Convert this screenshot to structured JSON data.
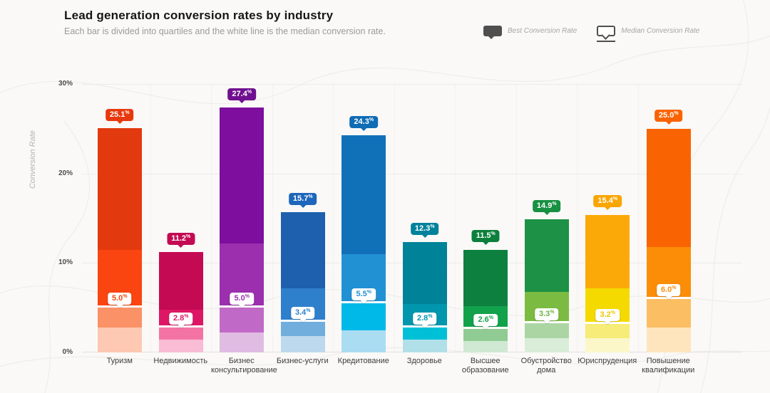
{
  "header": {
    "title": "Lead generation conversion rates by industry",
    "subtitle": "Each bar is divided into quartiles and the white line is the median conversion rate."
  },
  "legend": [
    {
      "icon": "filled-tooltip-icon",
      "label": "Best Conversion Rate"
    },
    {
      "icon": "outlined-tooltip-icon",
      "label": "Median Conversion Rate"
    }
  ],
  "axes": {
    "y_label": "Conversion Rate",
    "y_ticks": [
      "30%",
      "20%",
      "10%",
      "0%"
    ],
    "ylim": [
      0,
      30
    ],
    "grid": "horizontal"
  },
  "chart_data": {
    "type": "bar",
    "title": "Lead generation conversion rates by industry",
    "xlabel": "",
    "ylabel": "Conversion Rate",
    "ylim": [
      0,
      30
    ],
    "categories": [
      "Туризм",
      "Недвижимость",
      "Бизнес консультирование",
      "Бизнес-услуги",
      "Кредитование",
      "Здоровье",
      "Высшее образование",
      "Обустройство дома",
      "Юриспруденция",
      "Повышение квалификации"
    ],
    "bars": [
      {
        "category": "Туризм",
        "best": 25.1,
        "q3": 11.5,
        "median": 5.0,
        "q1": 2.8,
        "colors": {
          "top": "#e23a0e",
          "upper": "#fa4511",
          "lower": "#fb9166",
          "bottom": "#fdc9b2"
        },
        "badge_bg": "#e8380d",
        "median_text": "#f04a10"
      },
      {
        "category": "Недвижимость",
        "best": 11.2,
        "q3": 4.8,
        "median": 2.8,
        "q1": 1.4,
        "colors": {
          "top": "#c40a53",
          "upper": "#dd1766",
          "lower": "#f473a5",
          "bottom": "#f8bcd4"
        },
        "badge_bg": "#c40a53",
        "median_text": "#dd1766"
      },
      {
        "category": "Бизнес консультирование",
        "best": 27.4,
        "q3": 12.2,
        "median": 5.0,
        "q1": 2.2,
        "colors": {
          "top": "#7d0e9e",
          "upper": "#9b2fae",
          "lower": "#c169c6",
          "bottom": "#e0bce2"
        },
        "badge_bg": "#70108f",
        "median_text": "#9b2fae"
      },
      {
        "category": "Бизнес-услуги",
        "best": 15.7,
        "q3": 7.2,
        "median": 3.4,
        "q1": 1.8,
        "colors": {
          "top": "#1e5fae",
          "upper": "#2e80cc",
          "lower": "#71aedd",
          "bottom": "#bcd9ee"
        },
        "badge_bg": "#1d66bb",
        "median_text": "#2e80cc"
      },
      {
        "category": "Кредитование",
        "best": 24.3,
        "q3": 11.0,
        "median": 5.5,
        "q1": 2.5,
        "colors": {
          "top": "#1171b8",
          "upper": "#2191d4",
          "lower": "#00b9e8",
          "bottom": "#aadcf2"
        },
        "badge_bg": "#0f6cb5",
        "median_text": "#2191d4"
      },
      {
        "category": "Здоровье",
        "best": 12.3,
        "q3": 5.4,
        "median": 2.8,
        "q1": 1.4,
        "colors": {
          "top": "#008299",
          "upper": "#0096ad",
          "lower": "#00c0d8",
          "bottom": "#b2e0e8"
        },
        "badge_bg": "#00829b",
        "median_text": "#0096ad"
      },
      {
        "category": "Высшее образование",
        "best": 11.5,
        "q3": 5.2,
        "median": 2.6,
        "q1": 1.3,
        "colors": {
          "top": "#0d8040",
          "upper": "#12a24b",
          "lower": "#90cb94",
          "bottom": "#cfe9d2"
        },
        "badge_bg": "#0c7f3c",
        "median_text": "#12a24b"
      },
      {
        "category": "Обустройство дома",
        "best": 14.9,
        "q3": 6.8,
        "median": 3.3,
        "q1": 1.6,
        "colors": {
          "top": "#1d9145",
          "upper": "#7cbb41",
          "lower": "#abd6a4",
          "bottom": "#d9edd9"
        },
        "badge_bg": "#189042",
        "median_text": "#6cb33f"
      },
      {
        "category": "Юриспруденция",
        "best": 15.4,
        "q3": 7.2,
        "median": 3.2,
        "q1": 1.6,
        "colors": {
          "top": "#fba908",
          "upper": "#f5da00",
          "lower": "#f6ec77",
          "bottom": "#fbf7c8"
        },
        "badge_bg": "#f9a602",
        "median_text": "#ecc800"
      },
      {
        "category": "Повышение квалификации",
        "best": 25.0,
        "q3": 11.8,
        "median": 6.0,
        "q1": 2.8,
        "colors": {
          "top": "#f96302",
          "upper": "#fb8d07",
          "lower": "#fcbe62",
          "bottom": "#fee5bd"
        },
        "badge_bg": "#f96302",
        "median_text": "#fb8d07"
      }
    ]
  }
}
